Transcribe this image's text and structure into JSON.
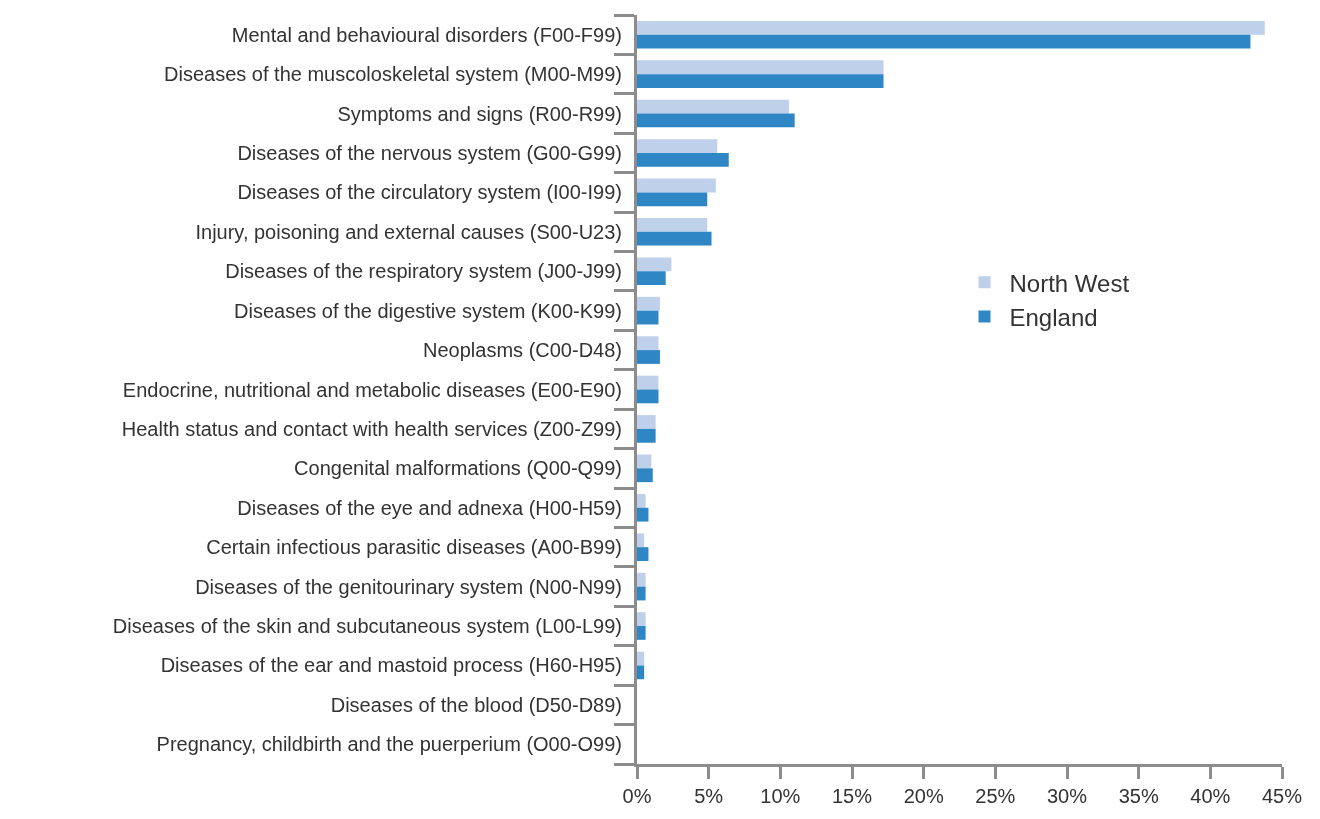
{
  "chart_data": {
    "type": "bar",
    "orientation": "horizontal",
    "categories": [
      "Mental and behavioural disorders (F00-F99)",
      "Diseases of the muscoloskeletal system (M00-M99)",
      "Symptoms and signs (R00-R99)",
      "Diseases of the nervous system (G00-G99)",
      "Diseases of the circulatory system (I00-I99)",
      "Injury, poisoning and external causes (S00-U23)",
      "Diseases of the respiratory system (J00-J99)",
      "Diseases of the digestive system (K00-K99)",
      "Neoplasms (C00-D48)",
      "Endocrine, nutritional and metabolic diseases (E00-E90)",
      "Health status and contact with health services (Z00-Z99)",
      "Congenital malformations (Q00-Q99)",
      "Diseases of the eye and adnexa (H00-H59)",
      "Certain infectious parasitic diseases (A00-B99)",
      "Diseases of the genitourinary system (N00-N99)",
      "Diseases of the skin and subcutaneous system (L00-L99)",
      "Diseases of the ear and mastoid process (H60-H95)",
      "Diseases of the blood (D50-D89)",
      "Pregnancy, childbirth and the puerperium (O00-O99)"
    ],
    "series": [
      {
        "name": "North West",
        "color": "#bfd0ea",
        "values": [
          43.8,
          17.2,
          10.6,
          5.6,
          5.5,
          4.9,
          2.4,
          1.6,
          1.5,
          1.5,
          1.3,
          1.0,
          0.6,
          0.5,
          0.6,
          0.6,
          0.5,
          0,
          0
        ]
      },
      {
        "name": "England",
        "color": "#2e86c5",
        "values": [
          42.8,
          17.2,
          11.0,
          6.4,
          4.9,
          5.2,
          2.0,
          1.5,
          1.6,
          1.5,
          1.3,
          1.1,
          0.8,
          0.8,
          0.6,
          0.6,
          0.5,
          0,
          0
        ]
      }
    ],
    "xlim": [
      0,
      45
    ],
    "xticks": [
      {
        "value": 0,
        "label": "0%"
      },
      {
        "value": 5,
        "label": "5%"
      },
      {
        "value": 10,
        "label": "10%"
      },
      {
        "value": 15,
        "label": "15%"
      },
      {
        "value": 20,
        "label": "20%"
      },
      {
        "value": 25,
        "label": "25%"
      },
      {
        "value": 30,
        "label": "30%"
      },
      {
        "value": 35,
        "label": "35%"
      },
      {
        "value": 40,
        "label": "40%"
      },
      {
        "value": 45,
        "label": "45%"
      }
    ],
    "grid": false,
    "legend": "right"
  }
}
